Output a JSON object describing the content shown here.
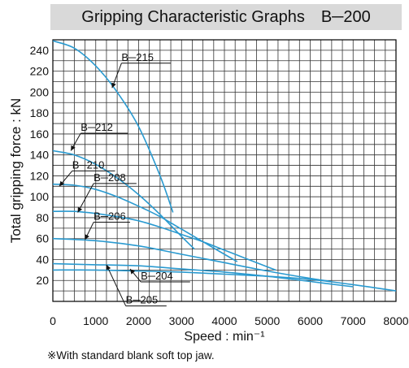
{
  "chart_data": {
    "type": "line",
    "title": "Gripping Characteristic Graphs　B─200",
    "xlabel": "Speed : min⁻¹",
    "ylabel": "Total gripping force : kN",
    "xlim": [
      0,
      8000
    ],
    "ylim": [
      0,
      250
    ],
    "grid": true,
    "x_ticks": [
      0,
      1000,
      2000,
      3000,
      4000,
      5000,
      6000,
      7000,
      8000
    ],
    "x_tick_labels": [
      "0",
      "1000",
      "2000",
      "3000",
      "4000",
      "5000",
      "6000",
      "7000",
      "8000"
    ],
    "y_ticks": [
      20,
      40,
      60,
      80,
      100,
      120,
      140,
      160,
      180,
      200,
      220,
      240
    ],
    "y_tick_labels": [
      "20",
      "40",
      "60",
      "80",
      "100",
      "120",
      "140",
      "160",
      "180",
      "200",
      "220",
      "240"
    ],
    "series_color": "#2a9ad0",
    "series": [
      {
        "name": "B─215",
        "x": [
          0,
          500,
          1000,
          1500,
          2000,
          2500,
          2800
        ],
        "y": [
          249,
          242,
          225,
          200,
          167,
          120,
          85
        ]
      },
      {
        "name": "B─212",
        "x": [
          0,
          500,
          1000,
          1500,
          2000,
          2500,
          3000,
          3300
        ],
        "y": [
          144,
          140,
          131,
          118,
          102,
          83,
          62,
          50
        ]
      },
      {
        "name": "B─210",
        "x": [
          0,
          500,
          1000,
          1500,
          2000,
          2500,
          3000,
          3500,
          4000,
          4300
        ],
        "y": [
          112,
          111,
          107,
          100,
          91,
          81,
          69,
          57,
          45,
          38
        ]
      },
      {
        "name": "B─208",
        "x": [
          0,
          500,
          1000,
          1500,
          2000,
          2500,
          3000,
          3500,
          4000,
          4500,
          5000,
          5200
        ],
        "y": [
          86,
          86,
          84,
          81,
          77,
          71,
          64,
          57,
          49,
          41,
          33,
          30
        ]
      },
      {
        "name": "B─206",
        "x": [
          0,
          1000,
          2000,
          3000,
          4000,
          5000,
          6000,
          6500
        ],
        "y": [
          60,
          58,
          53,
          45,
          37,
          29,
          22,
          19
        ]
      },
      {
        "name": "B─204",
        "x": [
          0,
          1000,
          2000,
          3000,
          4000,
          5000,
          6000,
          7000
        ],
        "y": [
          36,
          35,
          34,
          31,
          28,
          24,
          19,
          14
        ]
      },
      {
        "name": "B─205",
        "x": [
          0,
          1000,
          2000,
          3000,
          4000,
          5000,
          6000,
          7000,
          8000
        ],
        "y": [
          30,
          30,
          29,
          28,
          26,
          24,
          21,
          16,
          10
        ]
      }
    ]
  },
  "footnote": "※With standard blank soft top jaw."
}
